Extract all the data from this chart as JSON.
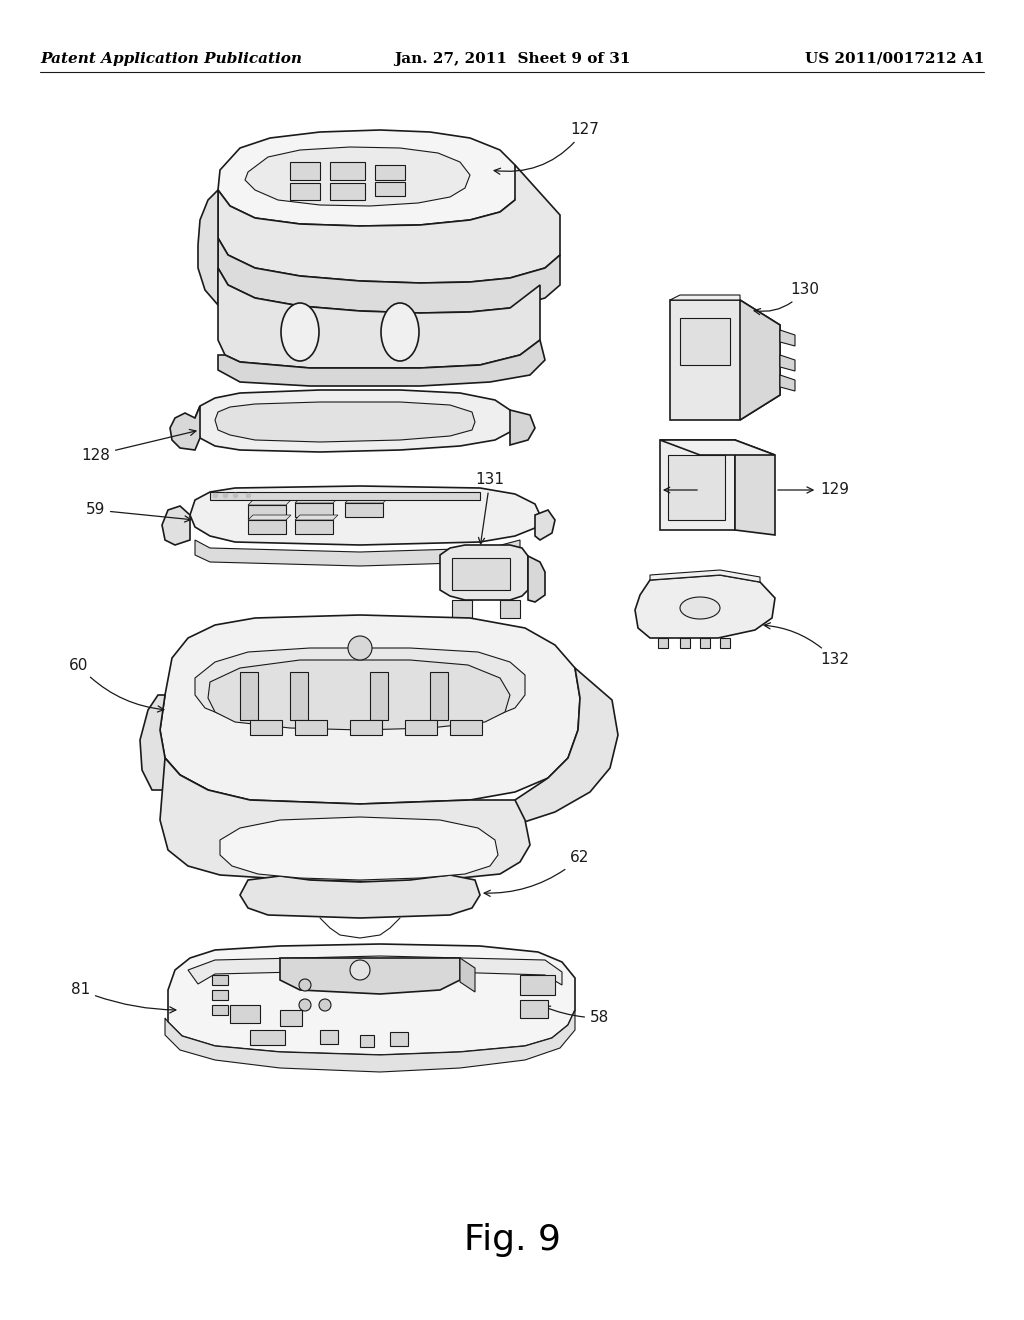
{
  "background_color": "#ffffff",
  "header_left": "Patent Application Publication",
  "header_center": "Jan. 27, 2011  Sheet 9 of 31",
  "header_right": "US 2011/0017212 A1",
  "figure_label": "Fig. 9",
  "header_fontsize": 11,
  "figure_label_fontsize": 26,
  "line_color": "#1a1a1a",
  "text_color": "#000000",
  "label_fontsize": 11
}
